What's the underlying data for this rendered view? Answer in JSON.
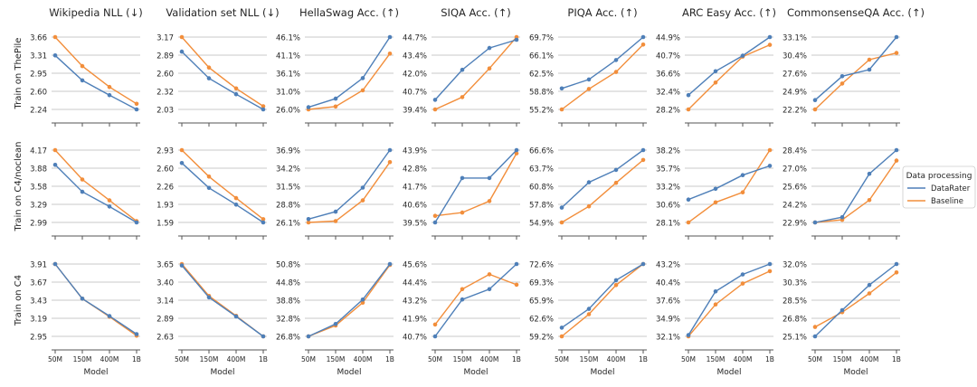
{
  "chart_data": {
    "type": "line",
    "categories": [
      "50M",
      "150M",
      "400M",
      "1B"
    ],
    "xlabel": "Model",
    "legend": {
      "title": "Data processing",
      "placement": "right",
      "entries": [
        {
          "name": "DataRater",
          "color": "#4e7fb8"
        },
        {
          "name": "Baseline",
          "color": "#f28e3b"
        }
      ]
    },
    "column_titles": [
      "Wikipedia NLL (↓)",
      "Validation set NLL (↓)",
      "HellaSwag Acc. (↑)",
      "SIQA Acc. (↑)",
      "PIQA Acc. (↑)",
      "ARC Easy Acc. (↑)",
      "CommonsenseQA Acc. (↑)"
    ],
    "row_labels": [
      "Train on ThePile",
      "Train on C4/noclean",
      "Train on C4"
    ],
    "grid": true,
    "panels": [
      [
        {
          "yticks": [
            "2.24",
            "2.60",
            "2.95",
            "3.31",
            "3.66"
          ],
          "ylim": [
            2.24,
            3.66
          ],
          "DataRater": [
            3.3,
            2.81,
            2.52,
            2.24
          ],
          "Baseline": [
            3.66,
            3.09,
            2.68,
            2.35
          ]
        },
        {
          "yticks": [
            "2.03",
            "2.32",
            "2.60",
            "2.89",
            "3.17"
          ],
          "ylim": [
            2.03,
            3.17
          ],
          "DataRater": [
            2.94,
            2.52,
            2.27,
            2.03
          ],
          "Baseline": [
            3.17,
            2.69,
            2.36,
            2.08
          ]
        },
        {
          "yticks": [
            "26.0%",
            "31.0%",
            "36.1%",
            "41.1%",
            "46.1%"
          ],
          "ylim": [
            26.0,
            46.1
          ],
          "DataRater": [
            26.6,
            29.0,
            34.7,
            46.1
          ],
          "Baseline": [
            26.0,
            26.8,
            31.3,
            41.5
          ]
        },
        {
          "yticks": [
            "39.4%",
            "40.7%",
            "42.0%",
            "43.4%",
            "44.7%"
          ],
          "ylim": [
            39.4,
            44.7
          ],
          "DataRater": [
            40.1,
            42.3,
            43.9,
            44.5
          ],
          "Baseline": [
            39.4,
            40.3,
            42.4,
            44.7
          ]
        },
        {
          "yticks": [
            "55.2%",
            "58.8%",
            "62.5%",
            "66.1%",
            "69.7%"
          ],
          "ylim": [
            55.2,
            69.7
          ],
          "DataRater": [
            59.4,
            61.2,
            65.1,
            69.7
          ],
          "Baseline": [
            55.2,
            59.3,
            62.7,
            68.2
          ]
        },
        {
          "yticks": [
            "28.2%",
            "32.4%",
            "36.6%",
            "40.7%",
            "44.9%"
          ],
          "ylim": [
            28.2,
            44.9
          ],
          "DataRater": [
            31.5,
            37.0,
            40.6,
            44.9
          ],
          "Baseline": [
            28.2,
            34.4,
            40.4,
            43.1
          ]
        },
        {
          "yticks": [
            "22.2%",
            "24.9%",
            "27.6%",
            "30.4%",
            "33.1%"
          ],
          "ylim": [
            22.2,
            33.1
          ],
          "DataRater": [
            23.6,
            27.2,
            28.2,
            33.1
          ],
          "Baseline": [
            22.2,
            26.1,
            29.7,
            30.7
          ]
        }
      ],
      [
        {
          "yticks": [
            "2.99",
            "3.29",
            "3.58",
            "3.88",
            "4.17"
          ],
          "ylim": [
            2.99,
            4.17
          ],
          "DataRater": [
            3.93,
            3.49,
            3.25,
            2.99
          ],
          "Baseline": [
            4.17,
            3.69,
            3.35,
            3.01
          ]
        },
        {
          "yticks": [
            "1.59",
            "1.93",
            "2.26",
            "2.60",
            "2.93"
          ],
          "ylim": [
            1.59,
            2.93
          ],
          "DataRater": [
            2.69,
            2.23,
            1.92,
            1.59
          ],
          "Baseline": [
            2.93,
            2.44,
            2.04,
            1.65
          ]
        },
        {
          "yticks": [
            "26.1%",
            "28.8%",
            "31.5%",
            "34.2%",
            "36.9%"
          ],
          "ylim": [
            26.1,
            36.9
          ],
          "DataRater": [
            26.6,
            27.7,
            31.3,
            36.9
          ],
          "Baseline": [
            26.1,
            26.3,
            29.4,
            35.1
          ]
        },
        {
          "yticks": [
            "39.5%",
            "40.6%",
            "41.7%",
            "42.8%",
            "43.9%"
          ],
          "ylim": [
            39.5,
            43.9
          ],
          "DataRater": [
            39.5,
            42.2,
            42.2,
            43.9
          ],
          "Baseline": [
            39.9,
            40.1,
            40.8,
            43.7
          ]
        },
        {
          "yticks": [
            "54.9%",
            "57.8%",
            "60.8%",
            "63.7%",
            "66.6%"
          ],
          "ylim": [
            54.9,
            66.6
          ],
          "DataRater": [
            57.3,
            61.4,
            63.4,
            66.6
          ],
          "Baseline": [
            54.9,
            57.5,
            61.3,
            65.0
          ]
        },
        {
          "yticks": [
            "28.1%",
            "30.6%",
            "33.2%",
            "35.7%",
            "38.2%"
          ],
          "ylim": [
            28.1,
            38.2
          ],
          "DataRater": [
            31.3,
            32.8,
            34.7,
            36.0
          ],
          "Baseline": [
            28.1,
            30.9,
            32.3,
            38.2
          ]
        },
        {
          "yticks": [
            "22.9%",
            "24.2%",
            "25.6%",
            "27.0%",
            "28.4%"
          ],
          "ylim": [
            22.9,
            28.4
          ],
          "DataRater": [
            22.9,
            23.3,
            26.6,
            28.4
          ],
          "Baseline": [
            22.9,
            23.1,
            24.6,
            27.6
          ]
        }
      ],
      [
        {
          "yticks": [
            "2.95",
            "3.19",
            "3.43",
            "3.67",
            "3.91"
          ],
          "ylim": [
            2.95,
            3.91
          ],
          "DataRater": [
            3.91,
            3.45,
            3.22,
            2.98
          ],
          "Baseline": [
            3.91,
            3.45,
            3.21,
            2.96
          ]
        },
        {
          "yticks": [
            "2.63",
            "2.89",
            "3.14",
            "3.40",
            "3.65"
          ],
          "ylim": [
            2.63,
            3.65
          ],
          "DataRater": [
            3.63,
            3.18,
            2.91,
            2.63
          ],
          "Baseline": [
            3.65,
            3.2,
            2.92,
            2.63
          ]
        },
        {
          "yticks": [
            "26.8%",
            "32.8%",
            "38.8%",
            "44.8%",
            "50.8%"
          ],
          "ylim": [
            26.8,
            50.8
          ],
          "DataRater": [
            26.8,
            30.9,
            39.0,
            50.8
          ],
          "Baseline": [
            26.8,
            30.4,
            38.0,
            50.5
          ]
        },
        {
          "yticks": [
            "40.7%",
            "41.9%",
            "43.2%",
            "44.4%",
            "45.6%"
          ],
          "ylim": [
            40.7,
            45.6
          ],
          "DataRater": [
            40.7,
            43.2,
            43.9,
            45.6
          ],
          "Baseline": [
            41.5,
            43.9,
            44.9,
            44.2
          ]
        },
        {
          "yticks": [
            "59.2%",
            "62.6%",
            "65.9%",
            "69.3%",
            "72.6%"
          ],
          "ylim": [
            59.2,
            72.6
          ],
          "DataRater": [
            60.8,
            64.3,
            69.6,
            72.6
          ],
          "Baseline": [
            59.2,
            63.3,
            68.7,
            72.6
          ]
        },
        {
          "yticks": [
            "32.1%",
            "34.9%",
            "37.6%",
            "40.4%",
            "43.2%"
          ],
          "ylim": [
            32.1,
            43.2
          ],
          "DataRater": [
            32.3,
            39.0,
            41.6,
            43.2
          ],
          "Baseline": [
            32.1,
            37.0,
            40.2,
            42.1
          ]
        },
        {
          "yticks": [
            "25.1%",
            "26.8%",
            "28.5%",
            "30.3%",
            "32.0%"
          ],
          "ylim": [
            25.1,
            32.0
          ],
          "DataRater": [
            25.1,
            27.6,
            30.0,
            32.0
          ],
          "Baseline": [
            26.0,
            27.4,
            29.2,
            31.2
          ]
        }
      ]
    ]
  }
}
